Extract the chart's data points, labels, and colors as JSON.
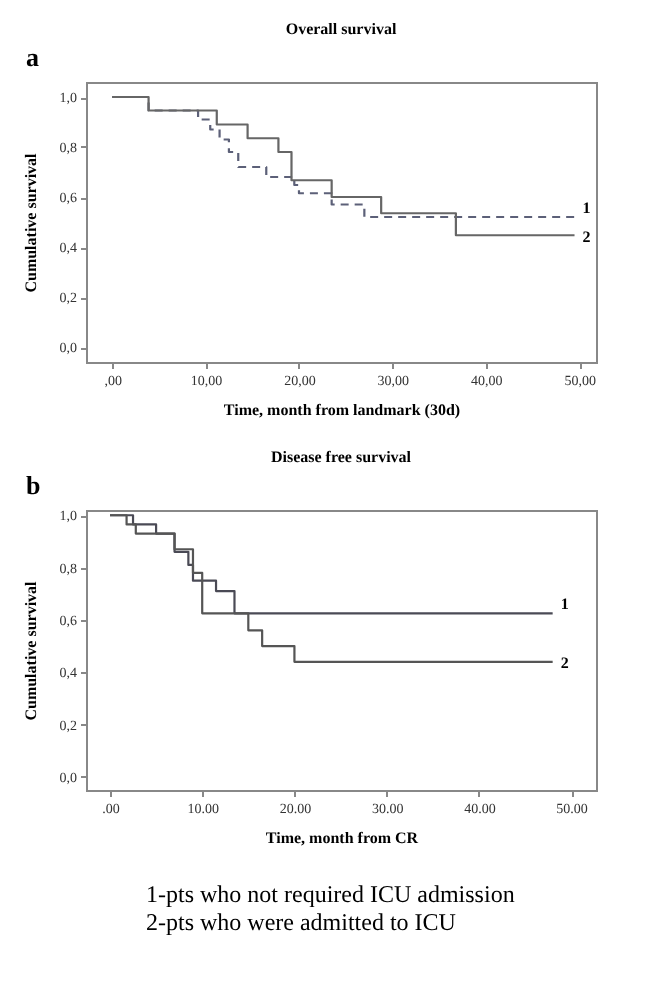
{
  "chart_data": [
    {
      "type": "step",
      "title": "Overall survival",
      "xlabel": "Time, month from landmark (30d)",
      "ylabel": "Cumulative survival",
      "annotations": [
        "a"
      ],
      "xlim": [
        -2.8,
        51.8
      ],
      "ylim": [
        -0.06,
        1.06
      ],
      "xticks": [
        {
          "value": 0,
          "label": ",00"
        },
        {
          "value": 10,
          "label": "10,00"
        },
        {
          "value": 20,
          "label": "20,00"
        },
        {
          "value": 30,
          "label": "30,00"
        },
        {
          "value": 40,
          "label": "40,00"
        },
        {
          "value": 50,
          "label": "50,00"
        }
      ],
      "yticks": [
        {
          "value": 0,
          "label": "0,0"
        },
        {
          "value": 0.2,
          "label": "0,2"
        },
        {
          "value": 0.4,
          "label": "0,4"
        },
        {
          "value": 0.6,
          "label": "0,6"
        },
        {
          "value": 0.8,
          "label": "0,8"
        },
        {
          "value": 1,
          "label": "1,0"
        }
      ],
      "series": [
        {
          "name": "1",
          "color": "#5c6078",
          "line_style": "dashed",
          "x": [
            0,
            3.9,
            9.2,
            10.5,
            11.5,
            12.5,
            13.5,
            16.5,
            19.5,
            20,
            23.5,
            27,
            49.5
          ],
          "values": [
            1,
            0.946,
            0.91,
            0.87,
            0.83,
            0.78,
            0.72,
            0.68,
            0.648,
            0.615,
            0.57,
            0.52,
            0.52
          ]
        },
        {
          "name": "2",
          "color": "#666666",
          "line_style": "solid",
          "x": [
            0,
            3.9,
            11.2,
            14.5,
            17.8,
            19.2,
            23.5,
            28.8,
            36.8,
            49.5
          ],
          "values": [
            1,
            0.946,
            0.89,
            0.835,
            0.78,
            0.667,
            0.6,
            0.535,
            0.447,
            0.447
          ]
        }
      ]
    },
    {
      "type": "step",
      "title": "Disease free survival",
      "xlabel": "Time, month from CR",
      "ylabel": "Cumulative survival",
      "annotations": [
        "b",
        "1-pts who not required ICU admission",
        "2-pts who were admitted to ICU"
      ],
      "xlim": [
        -2.6,
        52.7
      ],
      "ylim": [
        -0.05,
        1.02
      ],
      "xticks": [
        {
          "value": 0,
          "label": ".00"
        },
        {
          "value": 10,
          "label": "10.00"
        },
        {
          "value": 20,
          "label": "20.00"
        },
        {
          "value": 30,
          "label": "30.00"
        },
        {
          "value": 40,
          "label": "40.00"
        },
        {
          "value": 50,
          "label": "50.00"
        }
      ],
      "yticks": [
        {
          "value": 0,
          "label": "0,0"
        },
        {
          "value": 0.2,
          "label": "0,2"
        },
        {
          "value": 0.4,
          "label": "0,4"
        },
        {
          "value": 0.6,
          "label": "0,6"
        },
        {
          "value": 0.8,
          "label": "0,8"
        },
        {
          "value": 1,
          "label": "1,0"
        }
      ],
      "series": [
        {
          "name": "1",
          "color": "#4a4a55",
          "line_style": "solid",
          "x": [
            0,
            2.5,
            5,
            7,
            8.5,
            9,
            11.5,
            13.5,
            48
          ],
          "values": [
            1,
            0.965,
            0.93,
            0.86,
            0.81,
            0.75,
            0.71,
            0.625,
            0.625
          ]
        },
        {
          "name": "2",
          "color": "#555555",
          "line_style": "solid",
          "x": [
            0,
            1.8,
            2.8,
            7,
            9,
            10,
            15,
            16.5,
            20,
            48
          ],
          "values": [
            1,
            0.965,
            0.93,
            0.87,
            0.78,
            0.625,
            0.56,
            0.5,
            0.44,
            0.44
          ]
        }
      ]
    }
  ]
}
